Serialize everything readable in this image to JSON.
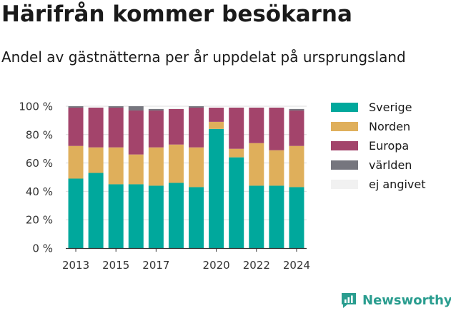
{
  "title": "Härifrån kommer besökarna",
  "subtitle": "Andel av gästnätterna per år uppdelat på ursprungsland",
  "brand": {
    "name": "Newsworthy",
    "icon": "newsworthy-logo-icon"
  },
  "chart_data": {
    "type": "bar",
    "stacked": true,
    "categories": [
      "2013",
      "2014",
      "2015",
      "2016",
      "2017",
      "2018",
      "2019",
      "2020",
      "2021",
      "2022",
      "2023",
      "2024"
    ],
    "x_tick_labels": [
      "2013",
      "2015",
      "2017",
      "2020",
      "2022",
      "2024"
    ],
    "y_tick_labels": [
      "0 %",
      "20 %",
      "40 %",
      "60 %",
      "80 %",
      "100 %"
    ],
    "ylim": [
      0,
      100
    ],
    "grid": true,
    "legend_position": "right",
    "series": [
      {
        "name": "Sverige",
        "color": "#00a89c",
        "values": [
          49,
          53,
          45,
          45,
          44,
          46,
          43,
          84,
          64,
          44,
          44,
          43
        ]
      },
      {
        "name": "Norden",
        "color": "#dfaf5b",
        "values": [
          23,
          18,
          26,
          21,
          27,
          27,
          28,
          5,
          6,
          30,
          25,
          29
        ]
      },
      {
        "name": "Europa",
        "color": "#a3446b",
        "values": [
          27,
          28,
          28,
          31,
          26,
          25,
          28,
          10,
          29,
          25,
          30,
          25
        ]
      },
      {
        "name": "världen",
        "color": "#76767e",
        "values": [
          1,
          0,
          1,
          3,
          1,
          0,
          1,
          0,
          0,
          0,
          0,
          1
        ]
      },
      {
        "name": "ej angivet",
        "color": "#f1f1f1",
        "values": [
          0,
          1,
          0,
          0,
          1,
          1,
          0,
          0,
          1,
          1,
          1,
          1
        ]
      }
    ]
  }
}
